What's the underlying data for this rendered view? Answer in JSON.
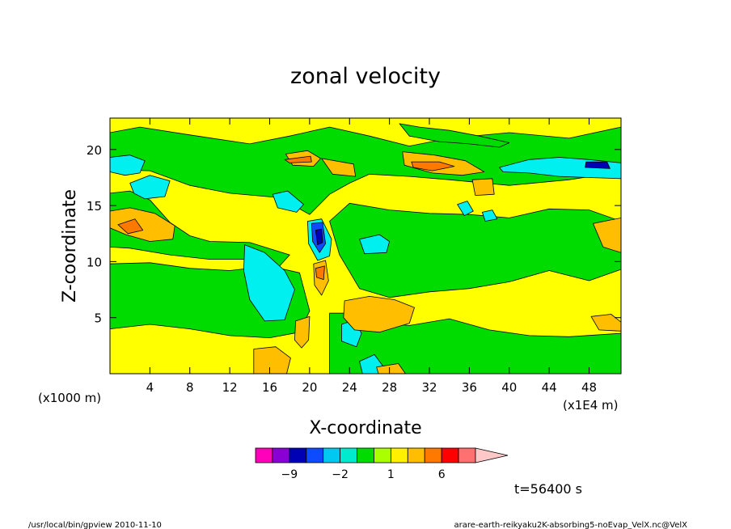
{
  "chart_data": {
    "type": "heatmap",
    "title": "zonal velocity",
    "xlabel": "X-coordinate",
    "ylabel": "Z-coordinate",
    "x_unit_left": "(x1000 m)",
    "x_unit_right": "(x1E4 m)",
    "xlim": [
      0,
      51.2
    ],
    "ylim": [
      0,
      22.8
    ],
    "x_ticks": [
      4,
      8,
      12,
      16,
      20,
      24,
      28,
      32,
      36,
      40,
      44,
      48
    ],
    "y_ticks": [
      5,
      10,
      15,
      20
    ],
    "x_tick_labels": [
      "4",
      "8",
      "12",
      "16",
      "20",
      "24",
      "28",
      "32",
      "36",
      "40",
      "44",
      "48"
    ],
    "y_tick_labels": [
      "5",
      "10",
      "15",
      "20"
    ],
    "field_background_level": 1,
    "regions": [
      {
        "level": 0,
        "points": [
          [
            0,
            21.5
          ],
          [
            3,
            22.0
          ],
          [
            8,
            21.3
          ],
          [
            14,
            20.5
          ],
          [
            18,
            21.2
          ],
          [
            22,
            22.0
          ],
          [
            26,
            21.2
          ],
          [
            30,
            20.3
          ],
          [
            34,
            21.0
          ],
          [
            40,
            21.5
          ],
          [
            46,
            21.0
          ],
          [
            51.2,
            22.0
          ],
          [
            51.2,
            18.0
          ],
          [
            46,
            17.3
          ],
          [
            40,
            16.8
          ],
          [
            34,
            17.3
          ],
          [
            30,
            17.6
          ],
          [
            26,
            17.8
          ],
          [
            24,
            17.0
          ],
          [
            22,
            16.0
          ],
          [
            20,
            14.2
          ],
          [
            17,
            15.7
          ],
          [
            12,
            16.1
          ],
          [
            8,
            16.8
          ],
          [
            4,
            18.1
          ],
          [
            0,
            18.2
          ]
        ]
      },
      {
        "level": 0,
        "points": [
          [
            24,
            15.2
          ],
          [
            28,
            14.6
          ],
          [
            32,
            14.3
          ],
          [
            36,
            14.2
          ],
          [
            40,
            13.9
          ],
          [
            44,
            14.7
          ],
          [
            48,
            14.6
          ],
          [
            51.2,
            13.6
          ],
          [
            51.2,
            9.3
          ],
          [
            48,
            8.3
          ],
          [
            44,
            9.2
          ],
          [
            40,
            8.2
          ],
          [
            36,
            7.6
          ],
          [
            32,
            7.3
          ],
          [
            28,
            6.8
          ],
          [
            25,
            7.6
          ],
          [
            23,
            10.6
          ],
          [
            22,
            13.6
          ]
        ]
      },
      {
        "level": 0,
        "points": [
          [
            0,
            9.8
          ],
          [
            4,
            9.9
          ],
          [
            8,
            9.4
          ],
          [
            12,
            9.2
          ],
          [
            16,
            9.6
          ],
          [
            19,
            9.0
          ],
          [
            20,
            5.6
          ],
          [
            19,
            3.7
          ],
          [
            16,
            3.2
          ],
          [
            12,
            3.4
          ],
          [
            8,
            4.0
          ],
          [
            4,
            4.4
          ],
          [
            0,
            4.0
          ]
        ]
      },
      {
        "level": 0,
        "points": [
          [
            22,
            5.4
          ],
          [
            24,
            5.4
          ],
          [
            26,
            4.6
          ],
          [
            30,
            4.3
          ],
          [
            34,
            4.9
          ],
          [
            38,
            3.9
          ],
          [
            42,
            3.4
          ],
          [
            46,
            3.3
          ],
          [
            51.2,
            3.6
          ],
          [
            51.2,
            0
          ],
          [
            22,
            0
          ]
        ]
      },
      {
        "level": 0,
        "points": [
          [
            0,
            16.1
          ],
          [
            2,
            16.3
          ],
          [
            4,
            15.5
          ],
          [
            6,
            13.5
          ],
          [
            8,
            12.3
          ],
          [
            10,
            11.8
          ],
          [
            14,
            11.7
          ],
          [
            18,
            10.6
          ],
          [
            17,
            9.6
          ],
          [
            14,
            10.2
          ],
          [
            10,
            10.2
          ],
          [
            6,
            10.6
          ],
          [
            2,
            11.2
          ],
          [
            0,
            11.3
          ]
        ]
      },
      {
        "level": 0,
        "points": [
          [
            29,
            22.3
          ],
          [
            31,
            22.0
          ],
          [
            34,
            21.7
          ],
          [
            37,
            21.2
          ],
          [
            40,
            20.6
          ],
          [
            39,
            20.2
          ],
          [
            36,
            20.5
          ],
          [
            33,
            20.7
          ],
          [
            30,
            21.2
          ]
        ]
      },
      {
        "level": -2,
        "points": [
          [
            0,
            19.3
          ],
          [
            2,
            19.5
          ],
          [
            3.5,
            19.0
          ],
          [
            3,
            17.9
          ],
          [
            1.5,
            17.7
          ],
          [
            0,
            18.0
          ]
        ]
      },
      {
        "level": -2,
        "points": [
          [
            2,
            17.0
          ],
          [
            4,
            17.7
          ],
          [
            6,
            17.2
          ],
          [
            5.5,
            15.8
          ],
          [
            3.5,
            15.6
          ],
          [
            2.4,
            16.1
          ]
        ]
      },
      {
        "level": -2,
        "points": [
          [
            13.5,
            11.5
          ],
          [
            15.5,
            10.8
          ],
          [
            17.5,
            9.2
          ],
          [
            18.5,
            7.5
          ],
          [
            17.5,
            4.8
          ],
          [
            15.5,
            4.7
          ],
          [
            14,
            6.6
          ],
          [
            13.4,
            9.2
          ]
        ]
      },
      {
        "level": -2,
        "points": [
          [
            16.3,
            16.0
          ],
          [
            17.8,
            16.3
          ],
          [
            19.4,
            15.1
          ],
          [
            18.7,
            14.4
          ],
          [
            16.8,
            14.8
          ]
        ]
      },
      {
        "level": -2,
        "points": [
          [
            25,
            12.0
          ],
          [
            27,
            12.4
          ],
          [
            28,
            11.8
          ],
          [
            27.7,
            10.8
          ],
          [
            25.5,
            10.7
          ]
        ]
      },
      {
        "level": -2,
        "points": [
          [
            23.2,
            4.4
          ],
          [
            24.5,
            4.8
          ],
          [
            25.2,
            3.6
          ],
          [
            24.7,
            2.4
          ],
          [
            23.2,
            2.9
          ]
        ]
      },
      {
        "level": -2,
        "points": [
          [
            25,
            1.1
          ],
          [
            26.5,
            1.7
          ],
          [
            27.5,
            0.5
          ],
          [
            27.3,
            0
          ],
          [
            25.3,
            0
          ]
        ]
      },
      {
        "level": -2,
        "points": [
          [
            34.8,
            15.1
          ],
          [
            35.8,
            15.4
          ],
          [
            36.4,
            14.5
          ],
          [
            35.5,
            14.1
          ]
        ]
      },
      {
        "level": -2,
        "points": [
          [
            37.3,
            14.4
          ],
          [
            38.3,
            14.6
          ],
          [
            38.8,
            13.8
          ],
          [
            37.6,
            13.6
          ]
        ]
      },
      {
        "level": -2,
        "points": [
          [
            39,
            18.4
          ],
          [
            42,
            19.1
          ],
          [
            45,
            19.3
          ],
          [
            48,
            19.1
          ],
          [
            51.2,
            18.8
          ],
          [
            51.2,
            17.4
          ],
          [
            48,
            17.5
          ],
          [
            45,
            17.6
          ],
          [
            42,
            17.9
          ],
          [
            39.4,
            18.0
          ]
        ]
      },
      {
        "level": -2,
        "points": [
          [
            19.8,
            13.6
          ],
          [
            21.2,
            13.8
          ],
          [
            22.2,
            12.0
          ],
          [
            22.0,
            10.5
          ],
          [
            20.8,
            10.1
          ],
          [
            19.9,
            11.6
          ]
        ]
      },
      {
        "level": 3,
        "points": [
          [
            17.6,
            19.6
          ],
          [
            19.8,
            19.9
          ],
          [
            21.1,
            19.2
          ],
          [
            20.4,
            18.5
          ],
          [
            18.3,
            18.6
          ]
        ]
      },
      {
        "level": 3,
        "points": [
          [
            21.2,
            19.2
          ],
          [
            24.4,
            18.7
          ],
          [
            24.6,
            17.6
          ],
          [
            22.3,
            17.8
          ]
        ]
      },
      {
        "level": 3,
        "points": [
          [
            29.3,
            19.8
          ],
          [
            32.5,
            19.5
          ],
          [
            35.6,
            19.0
          ],
          [
            37.5,
            18.0
          ],
          [
            35.3,
            17.7
          ],
          [
            32.3,
            17.9
          ],
          [
            29.5,
            18.6
          ]
        ]
      },
      {
        "level": 3,
        "points": [
          [
            0,
            14.5
          ],
          [
            2,
            14.8
          ],
          [
            4.5,
            14.3
          ],
          [
            6.5,
            13.2
          ],
          [
            6.3,
            12.0
          ],
          [
            4,
            11.8
          ],
          [
            1.6,
            12.4
          ],
          [
            0,
            13.0
          ]
        ]
      },
      {
        "level": 3,
        "points": [
          [
            36.3,
            17.3
          ],
          [
            38.3,
            17.4
          ],
          [
            38.5,
            16.0
          ],
          [
            36.6,
            15.9
          ]
        ]
      },
      {
        "level": 3,
        "points": [
          [
            48.4,
            13.4
          ],
          [
            51.2,
            13.9
          ],
          [
            51.2,
            10.8
          ],
          [
            49.4,
            11.3
          ]
        ]
      },
      {
        "level": 3,
        "points": [
          [
            23.5,
            6.5
          ],
          [
            26,
            6.9
          ],
          [
            28.5,
            6.6
          ],
          [
            30.5,
            5.9
          ],
          [
            30,
            4.5
          ],
          [
            27,
            3.7
          ],
          [
            24.5,
            3.9
          ],
          [
            23.4,
            5.0
          ]
        ]
      },
      {
        "level": 3,
        "points": [
          [
            14.4,
            2.2
          ],
          [
            16.6,
            2.4
          ],
          [
            18.1,
            1.4
          ],
          [
            17.7,
            0
          ],
          [
            14.4,
            0
          ]
        ]
      },
      {
        "level": 3,
        "points": [
          [
            18.6,
            4.7
          ],
          [
            20.0,
            5.1
          ],
          [
            19.9,
            3.0
          ],
          [
            19.2,
            2.3
          ],
          [
            18.5,
            3.0
          ]
        ]
      },
      {
        "level": 3,
        "points": [
          [
            20.4,
            9.8
          ],
          [
            21.6,
            10.1
          ],
          [
            21.9,
            8.3
          ],
          [
            21.2,
            7.0
          ],
          [
            20.5,
            7.9
          ]
        ]
      },
      {
        "level": 3,
        "points": [
          [
            26.7,
            0.6
          ],
          [
            28.9,
            0.9
          ],
          [
            29.6,
            0
          ],
          [
            26.9,
            0
          ]
        ]
      },
      {
        "level": 3,
        "points": [
          [
            48.2,
            5.1
          ],
          [
            50.2,
            5.3
          ],
          [
            51.2,
            4.6
          ],
          [
            51.2,
            3.8
          ],
          [
            49.0,
            3.9
          ]
        ]
      },
      {
        "level": 6,
        "points": [
          [
            17.5,
            19.1
          ],
          [
            20.1,
            19.4
          ],
          [
            20.2,
            18.9
          ],
          [
            18.0,
            18.8
          ]
        ]
      },
      {
        "level": 6,
        "points": [
          [
            30.2,
            18.9
          ],
          [
            33.0,
            18.9
          ],
          [
            34.5,
            18.5
          ],
          [
            32.3,
            18.1
          ],
          [
            30.4,
            18.4
          ]
        ]
      },
      {
        "level": 6,
        "points": [
          [
            0.8,
            13.3
          ],
          [
            2.5,
            13.8
          ],
          [
            3.3,
            12.8
          ],
          [
            1.8,
            12.5
          ]
        ]
      },
      {
        "level": 6,
        "points": [
          [
            20.6,
            9.4
          ],
          [
            21.5,
            9.6
          ],
          [
            21.4,
            8.4
          ],
          [
            20.7,
            8.6
          ]
        ]
      },
      {
        "level": -6,
        "points": [
          [
            20.2,
            13.4
          ],
          [
            21.3,
            13.5
          ],
          [
            21.6,
            11.6
          ],
          [
            21.0,
            10.8
          ],
          [
            20.3,
            11.8
          ]
        ]
      },
      {
        "level": -9,
        "points": [
          [
            20.6,
            12.8
          ],
          [
            21.2,
            12.9
          ],
          [
            21.3,
            11.7
          ],
          [
            20.8,
            11.5
          ]
        ]
      },
      {
        "level": -9,
        "points": [
          [
            47.7,
            18.9
          ],
          [
            49.8,
            18.9
          ],
          [
            50.1,
            18.3
          ],
          [
            47.6,
            18.4
          ]
        ]
      }
    ]
  },
  "colorbar": {
    "levels": [
      -12,
      -9,
      -6,
      -3,
      -2,
      -1,
      0,
      1,
      2,
      3,
      6,
      9,
      12
    ],
    "colors": [
      "#ff00bb",
      "#8a00d4",
      "#0000b4",
      "#0d4bff",
      "#00c8f0",
      "#00ebcd",
      "#00dc00",
      "#aaff00",
      "#fff000",
      "#ffbe00",
      "#ff7800",
      "#ff0000",
      "#ff7070",
      "#ffc8c8"
    ],
    "labels": [
      {
        "value": -9,
        "text": "−9"
      },
      {
        "value": -2,
        "text": "−2"
      },
      {
        "value": 1,
        "text": "1"
      },
      {
        "value": 6,
        "text": "6"
      }
    ]
  },
  "level_fill": {
    "-9": "#0000b4",
    "-6": "#0d4bff",
    "-2": "#00f0f0",
    "0": "#00dc00",
    "1": "#ffff00",
    "3": "#ffbe00",
    "6": "#ff7800"
  },
  "time_label": "t=56400 s",
  "footer": {
    "left": "/usr/local/bin/gpview  2010-11-10",
    "right": "arare-earth-reikyaku2K-absorbing5-noEvap_VelX.nc@VelX"
  }
}
